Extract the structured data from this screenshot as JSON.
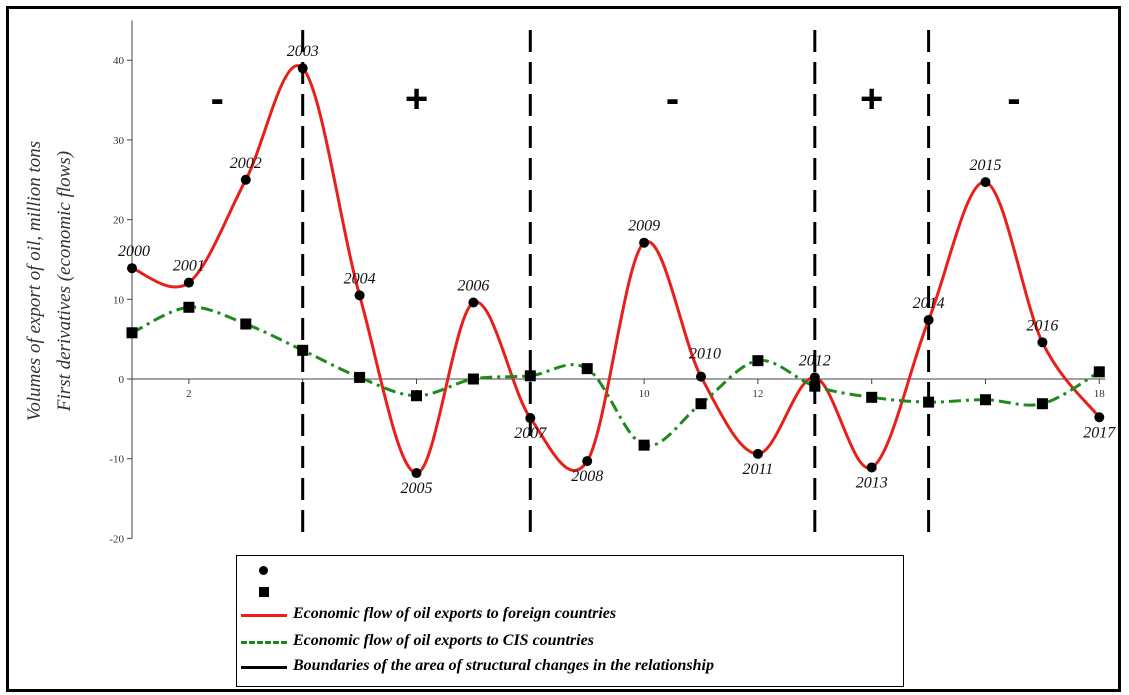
{
  "chart_data": {
    "type": "line",
    "ylabel_1": "Volumes of export of oil, million tons",
    "ylabel_2": "First derivatives (economic flows)",
    "xlim": [
      1,
      18
    ],
    "ylim": [
      -20,
      45
    ],
    "x_ticks": [
      2,
      4,
      6,
      8,
      10,
      12,
      14,
      16,
      18
    ],
    "x_tick_labels": [
      "2",
      "",
      "6",
      "",
      "10",
      "12",
      "",
      "",
      "18"
    ],
    "y_ticks": [
      -20,
      -10,
      0,
      10,
      20,
      30,
      40
    ],
    "y_tick_labels": [
      "-20",
      "-10",
      "0",
      "10",
      "20",
      "30",
      "40"
    ],
    "series": [
      {
        "name": "Economic flow of oil exports to foreign countries",
        "color": "#e8201c",
        "style": "solid",
        "marker": "circle",
        "x": [
          1,
          2,
          3,
          4,
          5,
          6,
          7,
          8,
          9,
          10,
          11,
          12,
          13,
          14,
          15,
          16,
          17,
          18
        ],
        "y": [
          13.9,
          12.1,
          25.0,
          39.0,
          10.5,
          -11.8,
          9.6,
          -4.9,
          -10.3,
          17.1,
          0.3,
          -9.4,
          0.2,
          -11.1,
          7.4,
          24.7,
          4.6,
          -4.8
        ],
        "labels": [
          "2000",
          "2001",
          "2002",
          "2003",
          "2004",
          "2005",
          "2006",
          "2007",
          "2008",
          "2009",
          "2010",
          "2011",
          "2012",
          "2013",
          "2014",
          "2015",
          "2016",
          "2017"
        ]
      },
      {
        "name": "Economic flow of oil exports to CIS countries",
        "color": "#1e8a1e",
        "style": "dash-dot",
        "marker": "square",
        "x": [
          1,
          2,
          3,
          4,
          5,
          6,
          7,
          8,
          9,
          10,
          11,
          12,
          13,
          14,
          15,
          16,
          17,
          18
        ],
        "y": [
          5.8,
          9.0,
          6.9,
          3.6,
          0.2,
          -2.1,
          0.0,
          0.4,
          1.3,
          -8.3,
          -3.1,
          2.3,
          -0.9,
          -2.3,
          -2.9,
          -2.6,
          -3.1,
          0.9
        ]
      }
    ],
    "boundaries": {
      "name": "Boundaries of the area of structural changes in the relationship",
      "x": [
        4,
        8,
        13,
        15
      ]
    },
    "regions": [
      {
        "sign": "-",
        "x": 2.5
      },
      {
        "sign": "+",
        "x": 6
      },
      {
        "sign": "-",
        "x": 10.5
      },
      {
        "sign": "+",
        "x": 14
      },
      {
        "sign": "-",
        "x": 16.5
      }
    ],
    "legend": {
      "marker_entries": [
        "",
        ""
      ],
      "line_entries": [
        "Economic flow of oil exports to foreign countries",
        "Economic flow of oil exports to CIS countries",
        "Boundaries of the area of structural changes in the relationship"
      ]
    }
  }
}
